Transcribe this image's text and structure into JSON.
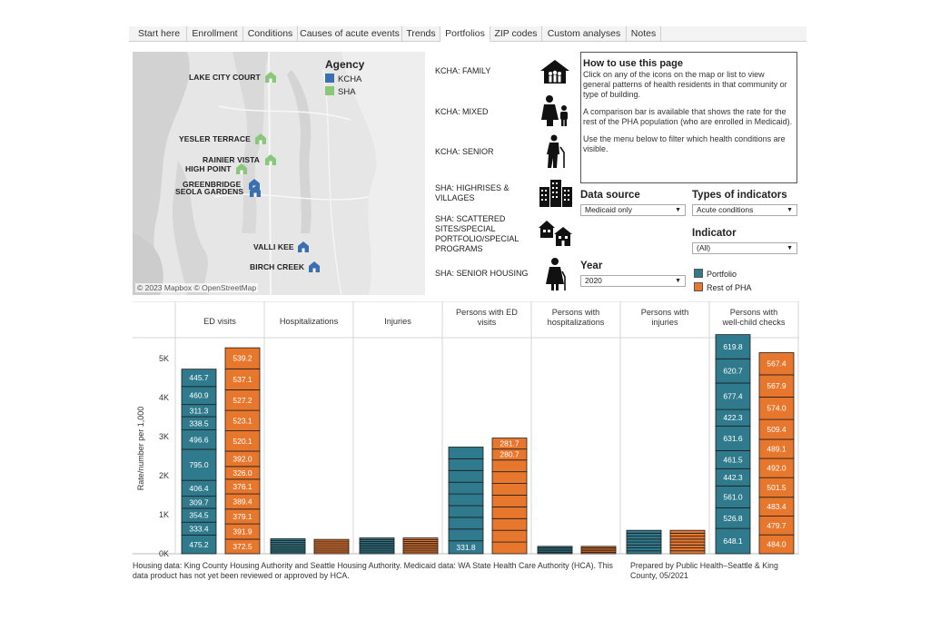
{
  "tabs": [
    "Start here",
    "Enrollment",
    "Conditions",
    "Causes of acute events",
    "Trends",
    "Portfolios",
    "ZIP codes",
    "Custom analyses",
    "Notes"
  ],
  "active_tab": "Portfolios",
  "map": {
    "legend_title": "Agency",
    "legend": [
      {
        "label": "KCHA",
        "color": "#3a6fb0"
      },
      {
        "label": "SHA",
        "color": "#8bc77b"
      }
    ],
    "attribution": "© 2023 Mapbox © OpenStreetMap",
    "sites": [
      {
        "label": "LAKE CITY COURT",
        "agency": "SHA"
      },
      {
        "label": "YESLER TERRACE",
        "agency": "SHA"
      },
      {
        "label": "RAINIER VISTA",
        "agency": "SHA"
      },
      {
        "label": "HIGH POINT",
        "agency": "SHA"
      },
      {
        "label": "GREENBRIDGE",
        "agency": "KCHA"
      },
      {
        "label": "SEOLA GARDENS",
        "agency": "KCHA"
      },
      {
        "label": "VALLI KEE",
        "agency": "KCHA"
      },
      {
        "label": "BIRCH CREEK",
        "agency": "KCHA"
      }
    ]
  },
  "portfolios": [
    {
      "label": "KCHA: FAMILY",
      "icon": "family-house-icon"
    },
    {
      "label": "KCHA: MIXED",
      "icon": "mixed-people-icon"
    },
    {
      "label": "KCHA: SENIOR",
      "icon": "senior-cane-icon"
    },
    {
      "label": "SHA: HIGHRISES & VILLAGES",
      "icon": "highrise-icon"
    },
    {
      "label": "SHA: SCATTERED SITES/SPECIAL PORTFOLIO/SPECIAL PROGRAMS",
      "icon": "scattered-houses-icon"
    },
    {
      "label": "SHA: SENIOR HOUSING",
      "icon": "senior-woman-icon"
    }
  ],
  "howto": {
    "title": "How to use this page",
    "p1": "Click on any of the icons on the map or list to view general patterns of health residents in that community or type of building.",
    "p2": "A comparison bar is available that shows the rate for the rest of the PHA population (who are enrolled in Medicaid).",
    "p3": "Use the menu below to filter which health conditions are visible."
  },
  "controls": {
    "data_source_label": "Data source",
    "data_source_value": "Medicaid only",
    "types_label": "Types of indicators",
    "types_value": "Acute conditions",
    "indicator_label": "Indicator",
    "indicator_value": "(All)",
    "year_label": "Year",
    "year_value": "2020"
  },
  "series_legend": [
    {
      "label": "Portfolio",
      "color": "#2f7a8c"
    },
    {
      "label": "Rest of PHA",
      "color": "#e8772e"
    }
  ],
  "chart_data": {
    "type": "bar",
    "ylabel": "Rate/number per 1,000",
    "yticks": [
      "0K",
      "1K",
      "2K",
      "3K",
      "4K",
      "5K"
    ],
    "ylim": [
      0,
      5300
    ],
    "categories": [
      "ED visits",
      "Hospitalizations",
      "Injuries",
      "Persons with ED visits",
      "Persons with hospitalizations",
      "Persons with injuries",
      "Persons with well-child checks"
    ],
    "series": [
      {
        "name": "Portfolio",
        "color": "#2f7a8c",
        "stacks": [
          [
            475.2,
            333.4,
            354.5,
            309.7,
            406.4,
            795.0,
            496.6,
            338.5,
            311.3,
            460.9,
            445.7
          ],
          [
            48,
            48,
            48,
            48,
            48,
            48,
            48,
            48
          ],
          [
            45,
            45,
            45,
            45,
            45,
            45,
            45,
            45,
            45
          ],
          [
            331.8,
            300,
            300,
            300,
            300,
            300,
            300,
            300,
            300
          ],
          [
            38,
            38,
            38,
            38,
            38
          ],
          [
            75,
            75,
            75,
            75,
            75,
            75,
            75,
            75
          ],
          [
            648.1,
            526.8,
            561.0,
            442.3,
            461.5,
            631.6,
            422.3,
            677.4,
            620.7,
            619.8
          ]
        ]
      },
      {
        "name": "Rest of PHA",
        "color": "#e8772e",
        "stacks": [
          [
            372.5,
            391.9,
            379.1,
            389.4,
            376.1,
            326.0,
            392.0,
            520.1,
            523.1,
            527.2,
            537.1,
            539.2
          ],
          [
            46,
            46,
            46,
            46,
            46,
            46,
            46,
            46
          ],
          [
            45,
            45,
            45,
            45,
            45,
            45,
            45,
            45,
            45
          ],
          [
            300,
            300,
            300,
            300,
            300,
            300,
            300,
            300,
            280.7,
            281.7
          ],
          [
            38,
            38,
            38,
            38,
            38
          ],
          [
            75,
            75,
            75,
            75,
            75,
            75,
            75,
            75
          ],
          [
            484.0,
            479.7,
            483.4,
            501.5,
            492.0,
            489.1,
            509.4,
            574.0,
            567.9,
            567.4
          ]
        ]
      }
    ],
    "labeled": [
      [
        true,
        true
      ],
      [
        false,
        false
      ],
      [
        false,
        false
      ],
      [
        [
          0
        ],
        [
          8,
          9
        ]
      ],
      [
        false,
        false
      ],
      [
        false,
        false
      ],
      [
        true,
        true
      ]
    ]
  },
  "footer": {
    "left": "Housing data: King County Housing Authority and Seattle Housing Authority. Medicaid data: WA State Health Care Authority (HCA). This data product has not yet been reviewed or approved by HCA.",
    "right": "Prepared by Public Health–Seattle & King County, 05/2021"
  }
}
